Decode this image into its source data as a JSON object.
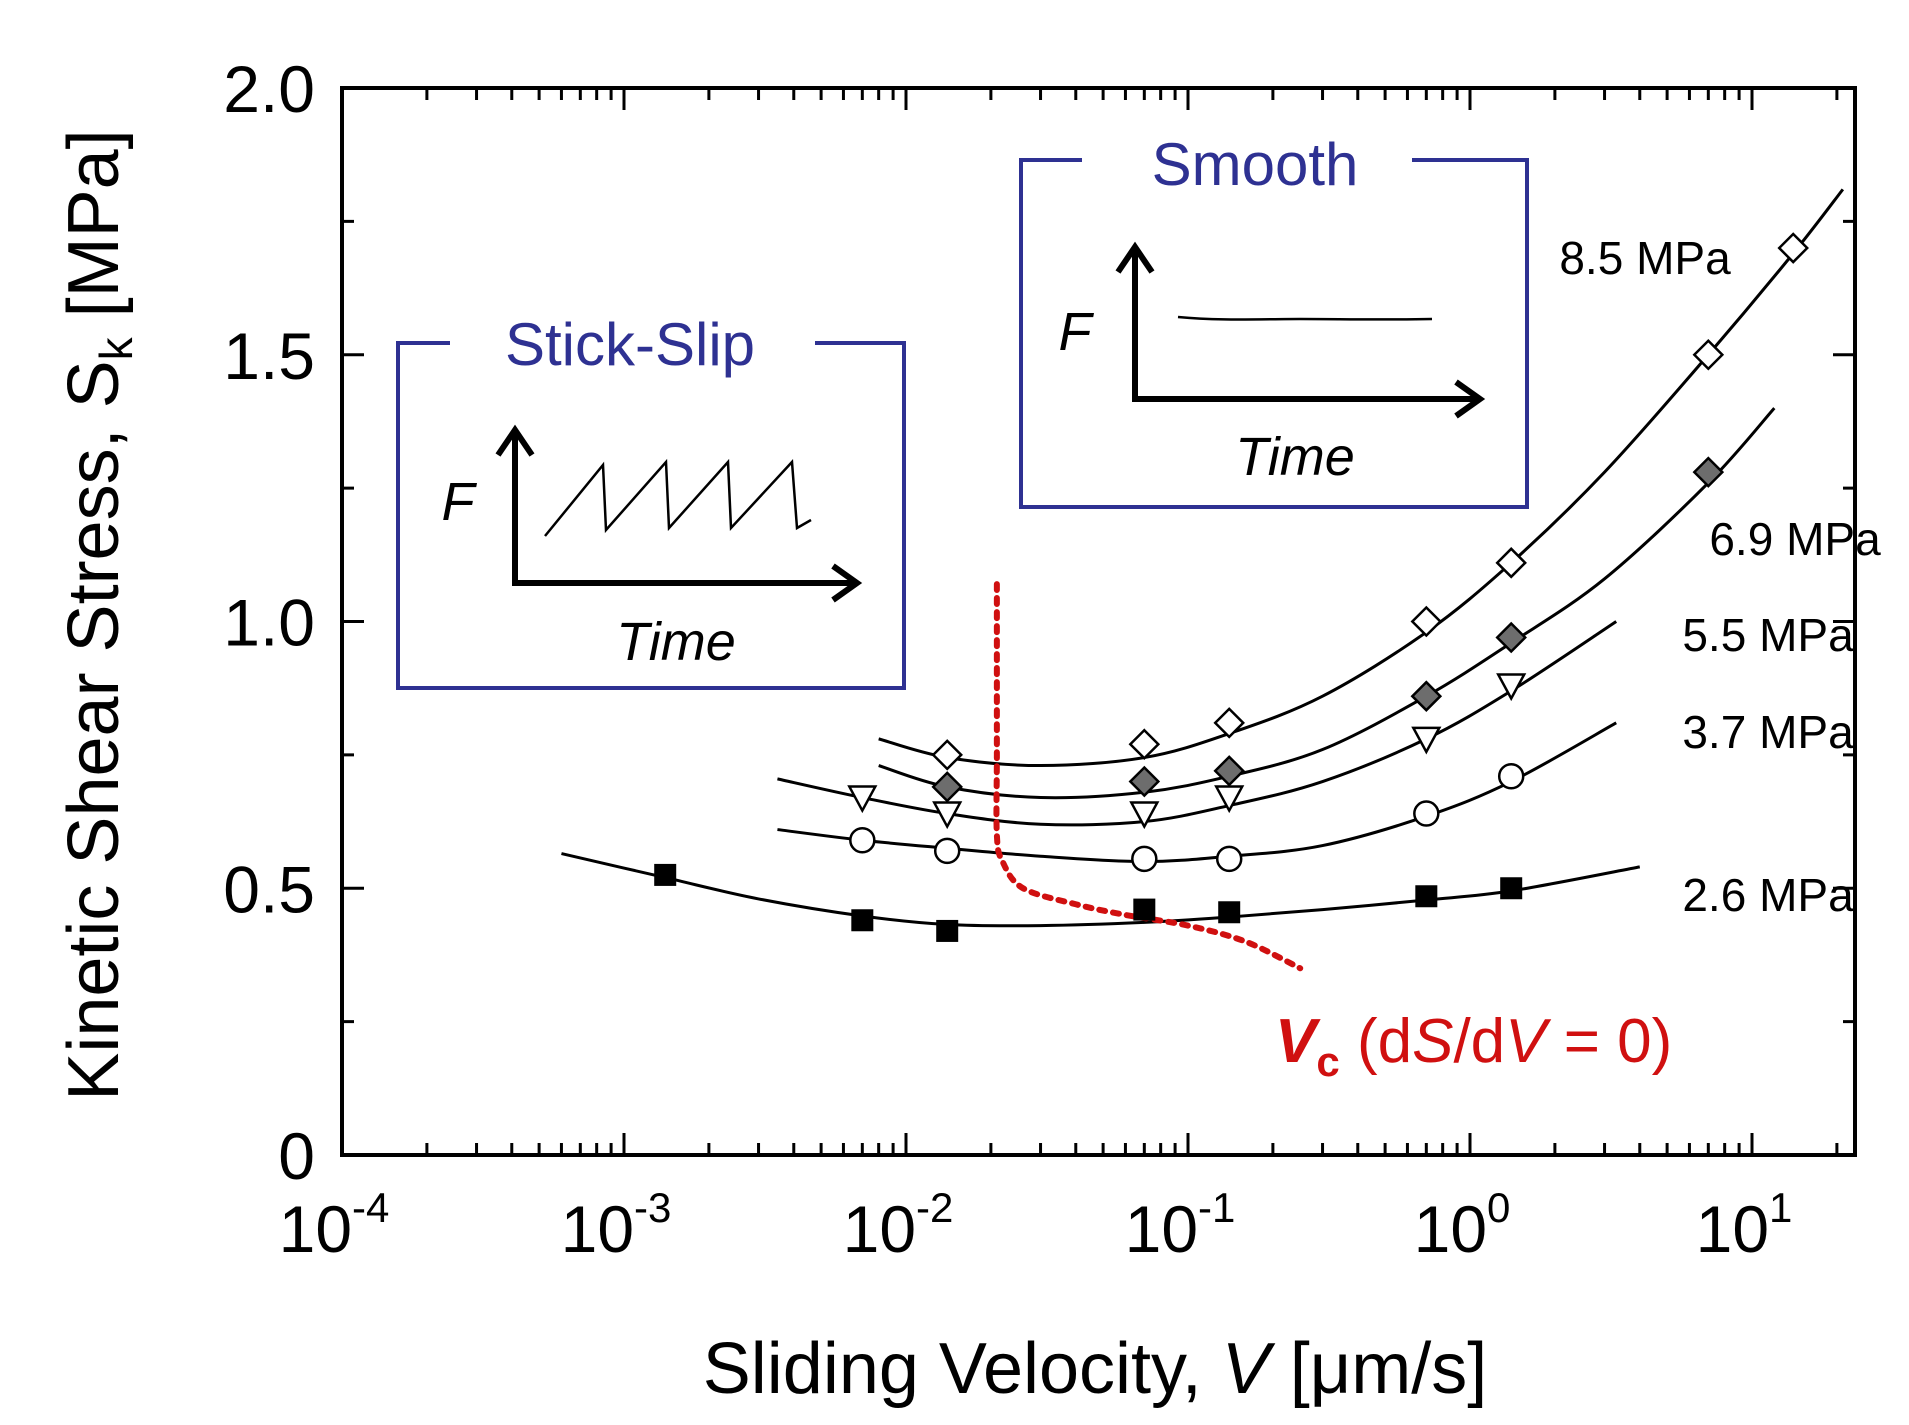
{
  "chart_data": {
    "type": "scatter",
    "xscale": "log",
    "xlim_log10": [
      -4,
      1.5
    ],
    "ylim": [
      0,
      2.0
    ],
    "ylabel": "Kinetic Shear Stress,  S",
    "ylabel_sub": "k",
    "ylabel_unit": " [MPa]",
    "xlabel_prefix": "Sliding Velocity, ",
    "xlabel_var": "V",
    "xlabel_unit": " [μm/s]",
    "yticks": [
      {
        "value": 0,
        "label": "0"
      },
      {
        "value": 0.5,
        "label": "0.5"
      },
      {
        "value": 1.0,
        "label": "1.0"
      },
      {
        "value": 1.5,
        "label": "1.5"
      },
      {
        "value": 2.0,
        "label": "2.0"
      }
    ],
    "xticks": [
      {
        "exp": -4,
        "base": "10",
        "sup": "-4"
      },
      {
        "exp": -3,
        "base": "10",
        "sup": "-3"
      },
      {
        "exp": -2,
        "base": "10",
        "sup": "-2"
      },
      {
        "exp": -1,
        "base": "10",
        "sup": "-1"
      },
      {
        "exp": 0,
        "base": "10",
        "sup": "0"
      },
      {
        "exp": 1,
        "base": "10",
        "sup": "1"
      }
    ],
    "series": [
      {
        "name": "8.5 MPa",
        "marker": "diamond-open",
        "x": [
          0.014,
          0.07,
          0.14,
          0.7,
          1.4,
          7,
          14
        ],
        "y": [
          0.75,
          0.77,
          0.81,
          1.0,
          1.11,
          1.5,
          1.7
        ],
        "fit": {
          "xmin": 0.008,
          "xmax": 21,
          "points": [
            [
              0.008,
              0.78
            ],
            [
              0.014,
              0.745
            ],
            [
              0.03,
              0.73
            ],
            [
              0.07,
              0.745
            ],
            [
              0.14,
              0.79
            ],
            [
              0.3,
              0.86
            ],
            [
              0.7,
              0.98
            ],
            [
              1.4,
              1.11
            ],
            [
              3,
              1.28
            ],
            [
              7,
              1.5
            ],
            [
              14,
              1.69
            ],
            [
              21,
              1.81
            ]
          ]
        }
      },
      {
        "name": "6.9 MPa",
        "marker": "diamond-filled",
        "x": [
          0.014,
          0.07,
          0.14,
          0.7,
          1.4,
          7
        ],
        "y": [
          0.69,
          0.7,
          0.72,
          0.86,
          0.97,
          1.28
        ],
        "fit": {
          "xmin": 0.008,
          "xmax": 12,
          "points": [
            [
              0.008,
              0.73
            ],
            [
              0.014,
              0.69
            ],
            [
              0.03,
              0.67
            ],
            [
              0.07,
              0.68
            ],
            [
              0.14,
              0.71
            ],
            [
              0.3,
              0.76
            ],
            [
              0.7,
              0.86
            ],
            [
              1.4,
              0.96
            ],
            [
              3,
              1.08
            ],
            [
              7,
              1.26
            ],
            [
              12,
              1.4
            ]
          ]
        }
      },
      {
        "name": "5.5 MPa",
        "marker": "triangle-down-open",
        "x": [
          0.007,
          0.014,
          0.07,
          0.14,
          0.7,
          1.4
        ],
        "y": [
          0.67,
          0.64,
          0.64,
          0.67,
          0.78,
          0.88
        ],
        "fit": {
          "xmin": 0.0035,
          "xmax": 3.3,
          "points": [
            [
              0.0035,
              0.705
            ],
            [
              0.007,
              0.67
            ],
            [
              0.014,
              0.64
            ],
            [
              0.03,
              0.62
            ],
            [
              0.07,
              0.625
            ],
            [
              0.14,
              0.655
            ],
            [
              0.3,
              0.7
            ],
            [
              0.7,
              0.78
            ],
            [
              1.4,
              0.87
            ],
            [
              3.3,
              1.0
            ]
          ]
        }
      },
      {
        "name": "3.7 MPa",
        "marker": "circle-open",
        "x": [
          0.007,
          0.014,
          0.07,
          0.14,
          0.7,
          1.4
        ],
        "y": [
          0.59,
          0.57,
          0.555,
          0.555,
          0.64,
          0.71
        ],
        "fit": {
          "xmin": 0.0035,
          "xmax": 3.3,
          "points": [
            [
              0.0035,
              0.61
            ],
            [
              0.007,
              0.59
            ],
            [
              0.014,
              0.575
            ],
            [
              0.03,
              0.56
            ],
            [
              0.07,
              0.55
            ],
            [
              0.14,
              0.56
            ],
            [
              0.3,
              0.58
            ],
            [
              0.7,
              0.635
            ],
            [
              1.4,
              0.7
            ],
            [
              3.3,
              0.81
            ]
          ]
        }
      },
      {
        "name": "2.6 MPa",
        "marker": "square-filled",
        "x": [
          0.0014,
          0.007,
          0.014,
          0.07,
          0.14,
          0.7,
          1.4
        ],
        "y": [
          0.525,
          0.44,
          0.42,
          0.46,
          0.455,
          0.485,
          0.5
        ],
        "fit": {
          "xmin": 0.0006,
          "xmax": 4,
          "points": [
            [
              0.0006,
              0.565
            ],
            [
              0.0014,
              0.52
            ],
            [
              0.003,
              0.48
            ],
            [
              0.007,
              0.448
            ],
            [
              0.014,
              0.432
            ],
            [
              0.03,
              0.43
            ],
            [
              0.07,
              0.436
            ],
            [
              0.14,
              0.446
            ],
            [
              0.3,
              0.46
            ],
            [
              0.7,
              0.478
            ],
            [
              1.4,
              0.495
            ],
            [
              4,
              0.54
            ]
          ]
        }
      }
    ],
    "vc_curve": {
      "name": "Vc (dS/dV = 0)",
      "color": "#d01010",
      "points": [
        [
          0.021,
          1.07
        ],
        [
          0.021,
          0.95
        ],
        [
          0.021,
          0.75
        ],
        [
          0.021,
          0.6
        ],
        [
          0.022,
          0.55
        ],
        [
          0.026,
          0.5
        ],
        [
          0.04,
          0.47
        ],
        [
          0.06,
          0.45
        ],
        [
          0.1,
          0.43
        ],
        [
          0.16,
          0.4
        ],
        [
          0.25,
          0.35
        ]
      ]
    },
    "vc_label": {
      "main": "V",
      "sub": "c",
      "rest_open": " (d",
      "s_var": "S",
      "slash": "/d",
      "v_var": "V",
      "rest_close": " = 0)"
    },
    "insets": [
      {
        "title": "Stick-Slip",
        "y_label": "F",
        "x_label": "Time",
        "kind": "sawtooth"
      },
      {
        "title": "Smooth",
        "y_label": "F",
        "x_label": "Time",
        "kind": "flat"
      }
    ],
    "colors": {
      "inset_border": "#2e3192",
      "inset_title": "#2e3192",
      "vc": "#d01010",
      "filled_diamond": "#6d6d6d"
    }
  }
}
